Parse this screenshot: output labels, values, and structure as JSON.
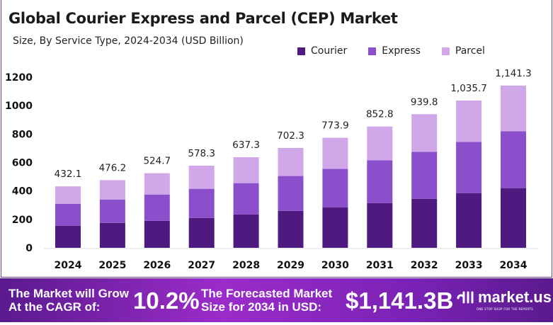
{
  "chart_data": {
    "type": "bar",
    "stacked": true,
    "title": "Global Courier Express and Parcel (CEP) Market",
    "subtitle": "Size, By Service Type, 2024-2034 (USD Billion)",
    "categories": [
      "2024",
      "2025",
      "2026",
      "2027",
      "2028",
      "2029",
      "2030",
      "2031",
      "2032",
      "2033",
      "2034"
    ],
    "series": [
      {
        "name": "Courier",
        "color": "#4f1a80",
        "values": [
          155,
          175,
          190,
          210,
          235,
          260,
          285,
          315,
          345,
          385,
          420
        ]
      },
      {
        "name": "Express",
        "color": "#8c4fcb",
        "values": [
          155,
          165,
          185,
          205,
          220,
          245,
          270,
          300,
          330,
          360,
          400
        ]
      },
      {
        "name": "Parcel",
        "color": "#d0a7e8",
        "values": [
          122.1,
          136.2,
          149.7,
          163.3,
          182.3,
          197.3,
          218.9,
          237.8,
          264.8,
          290.7,
          321.3
        ]
      }
    ],
    "totals": [
      "432.1",
      "476.2",
      "524.7",
      "578.3",
      "637.3",
      "702.3",
      "773.9",
      "852.8",
      "939.8",
      "1,035.7",
      "1,141.3"
    ],
    "ylim": [
      0,
      1200
    ],
    "yticks": [
      "0",
      "200",
      "400",
      "600",
      "800",
      "1000",
      "1200"
    ],
    "grid": false,
    "legend_position": "top-right"
  },
  "footer": {
    "cagr_label_1": "The Market will Grow",
    "cagr_label_2": "At the CAGR of:",
    "cagr_value": "10.2%",
    "forecast_label_1": "The Forecasted Market",
    "forecast_label_2": "Size for 2034 in USD:",
    "forecast_value": "$1,141.3B",
    "logo_text": "market.us",
    "logo_tagline": "ONE STOP SHOP FOR THE REPORTS"
  }
}
